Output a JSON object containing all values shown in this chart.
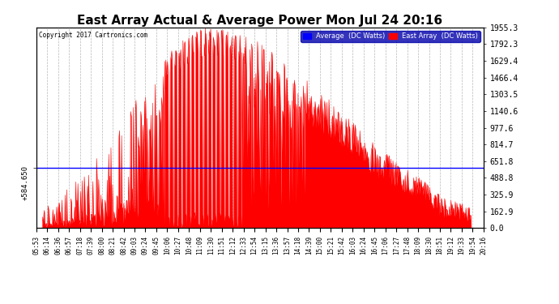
{
  "title": "East Array Actual & Average Power Mon Jul 24 20:16",
  "copyright": "Copyright 2017 Cartronics.com",
  "ylabel_right_ticks": [
    0.0,
    162.9,
    325.9,
    488.8,
    651.8,
    814.7,
    977.6,
    1140.6,
    1303.5,
    1466.4,
    1629.4,
    1792.3,
    1955.3
  ],
  "ylim": [
    0,
    1955.3
  ],
  "average_line_y": 584.65,
  "average_label": "+584.650",
  "background_color": "#ffffff",
  "plot_bg_color": "#ffffff",
  "grid_color": "#b0b0b0",
  "red_fill_color": "#ff0000",
  "blue_line_color": "#0000ff",
  "title_fontsize": 11,
  "legend_labels": [
    "Average  (DC Watts)",
    "East Array  (DC Watts)"
  ],
  "legend_colors": [
    "#0000ff",
    "#ff0000"
  ],
  "xtick_labels": [
    "05:53",
    "06:14",
    "06:36",
    "06:57",
    "07:18",
    "07:39",
    "08:00",
    "08:21",
    "08:42",
    "09:03",
    "09:24",
    "09:45",
    "10:06",
    "10:27",
    "10:48",
    "11:09",
    "11:30",
    "11:51",
    "12:12",
    "12:33",
    "12:54",
    "13:15",
    "13:36",
    "13:57",
    "14:18",
    "14:39",
    "15:00",
    "15:21",
    "15:42",
    "16:03",
    "16:24",
    "16:45",
    "17:06",
    "17:27",
    "17:48",
    "18:09",
    "18:30",
    "18:51",
    "19:12",
    "19:33",
    "19:54",
    "20:16"
  ],
  "n_points": 840
}
